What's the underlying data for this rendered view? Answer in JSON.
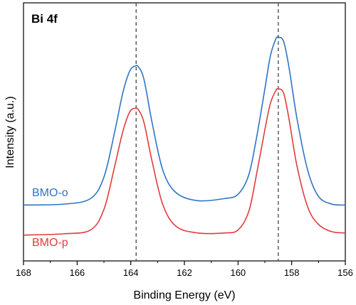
{
  "chart_data": {
    "type": "line",
    "title": "Bi 4f",
    "xlabel": "Binding Energy (eV)",
    "ylabel": "Intensity (a.u.)",
    "xlim": [
      168,
      156
    ],
    "x_reversed": true,
    "x_ticks": [
      168,
      166,
      164,
      162,
      160,
      158,
      156
    ],
    "x_tick_labels": [
      "168",
      "166",
      "164",
      "162",
      "160",
      "158",
      "156"
    ],
    "y_ticks_shown": false,
    "grid": false,
    "reference_lines_x": [
      163.8,
      158.5
    ],
    "reference_line_style": "dashed",
    "series": [
      {
        "name": "BMO-o",
        "color": "#2e74c6",
        "x": [
          168,
          166.5,
          165.5,
          165.0,
          164.6,
          164.3,
          164.05,
          163.85,
          163.7,
          163.5,
          163.2,
          162.8,
          162.3,
          161.5,
          160.5,
          160.0,
          159.6,
          159.3,
          159.0,
          158.8,
          158.6,
          158.5,
          158.3,
          158.1,
          157.8,
          157.4,
          157.0,
          156.5,
          156
        ],
        "y": [
          0.7,
          0.72,
          0.85,
          1.35,
          2.4,
          3.3,
          3.8,
          3.93,
          3.9,
          3.6,
          2.6,
          1.5,
          0.98,
          0.8,
          0.85,
          0.95,
          1.4,
          2.3,
          3.4,
          4.15,
          4.55,
          4.6,
          4.5,
          3.9,
          2.7,
          1.5,
          0.9,
          0.72,
          0.7
        ]
      },
      {
        "name": "BMO-p",
        "color": "#e03c3c",
        "x": [
          168,
          166.5,
          165.5,
          165.0,
          164.6,
          164.3,
          164.05,
          163.85,
          163.7,
          163.5,
          163.2,
          162.8,
          162.3,
          161.5,
          160.5,
          160.0,
          159.6,
          159.3,
          159.0,
          158.8,
          158.6,
          158.5,
          158.3,
          158.1,
          157.8,
          157.4,
          157.0,
          156.5,
          156
        ],
        "y": [
          0.0,
          0.03,
          0.12,
          0.6,
          1.6,
          2.4,
          2.85,
          2.95,
          2.9,
          2.6,
          1.7,
          0.7,
          0.2,
          0.05,
          0.05,
          0.12,
          0.55,
          1.45,
          2.45,
          3.05,
          3.35,
          3.4,
          3.3,
          2.7,
          1.6,
          0.65,
          0.25,
          0.08,
          0.05
        ]
      }
    ],
    "ylim": [
      -0.6,
      5.4
    ]
  }
}
